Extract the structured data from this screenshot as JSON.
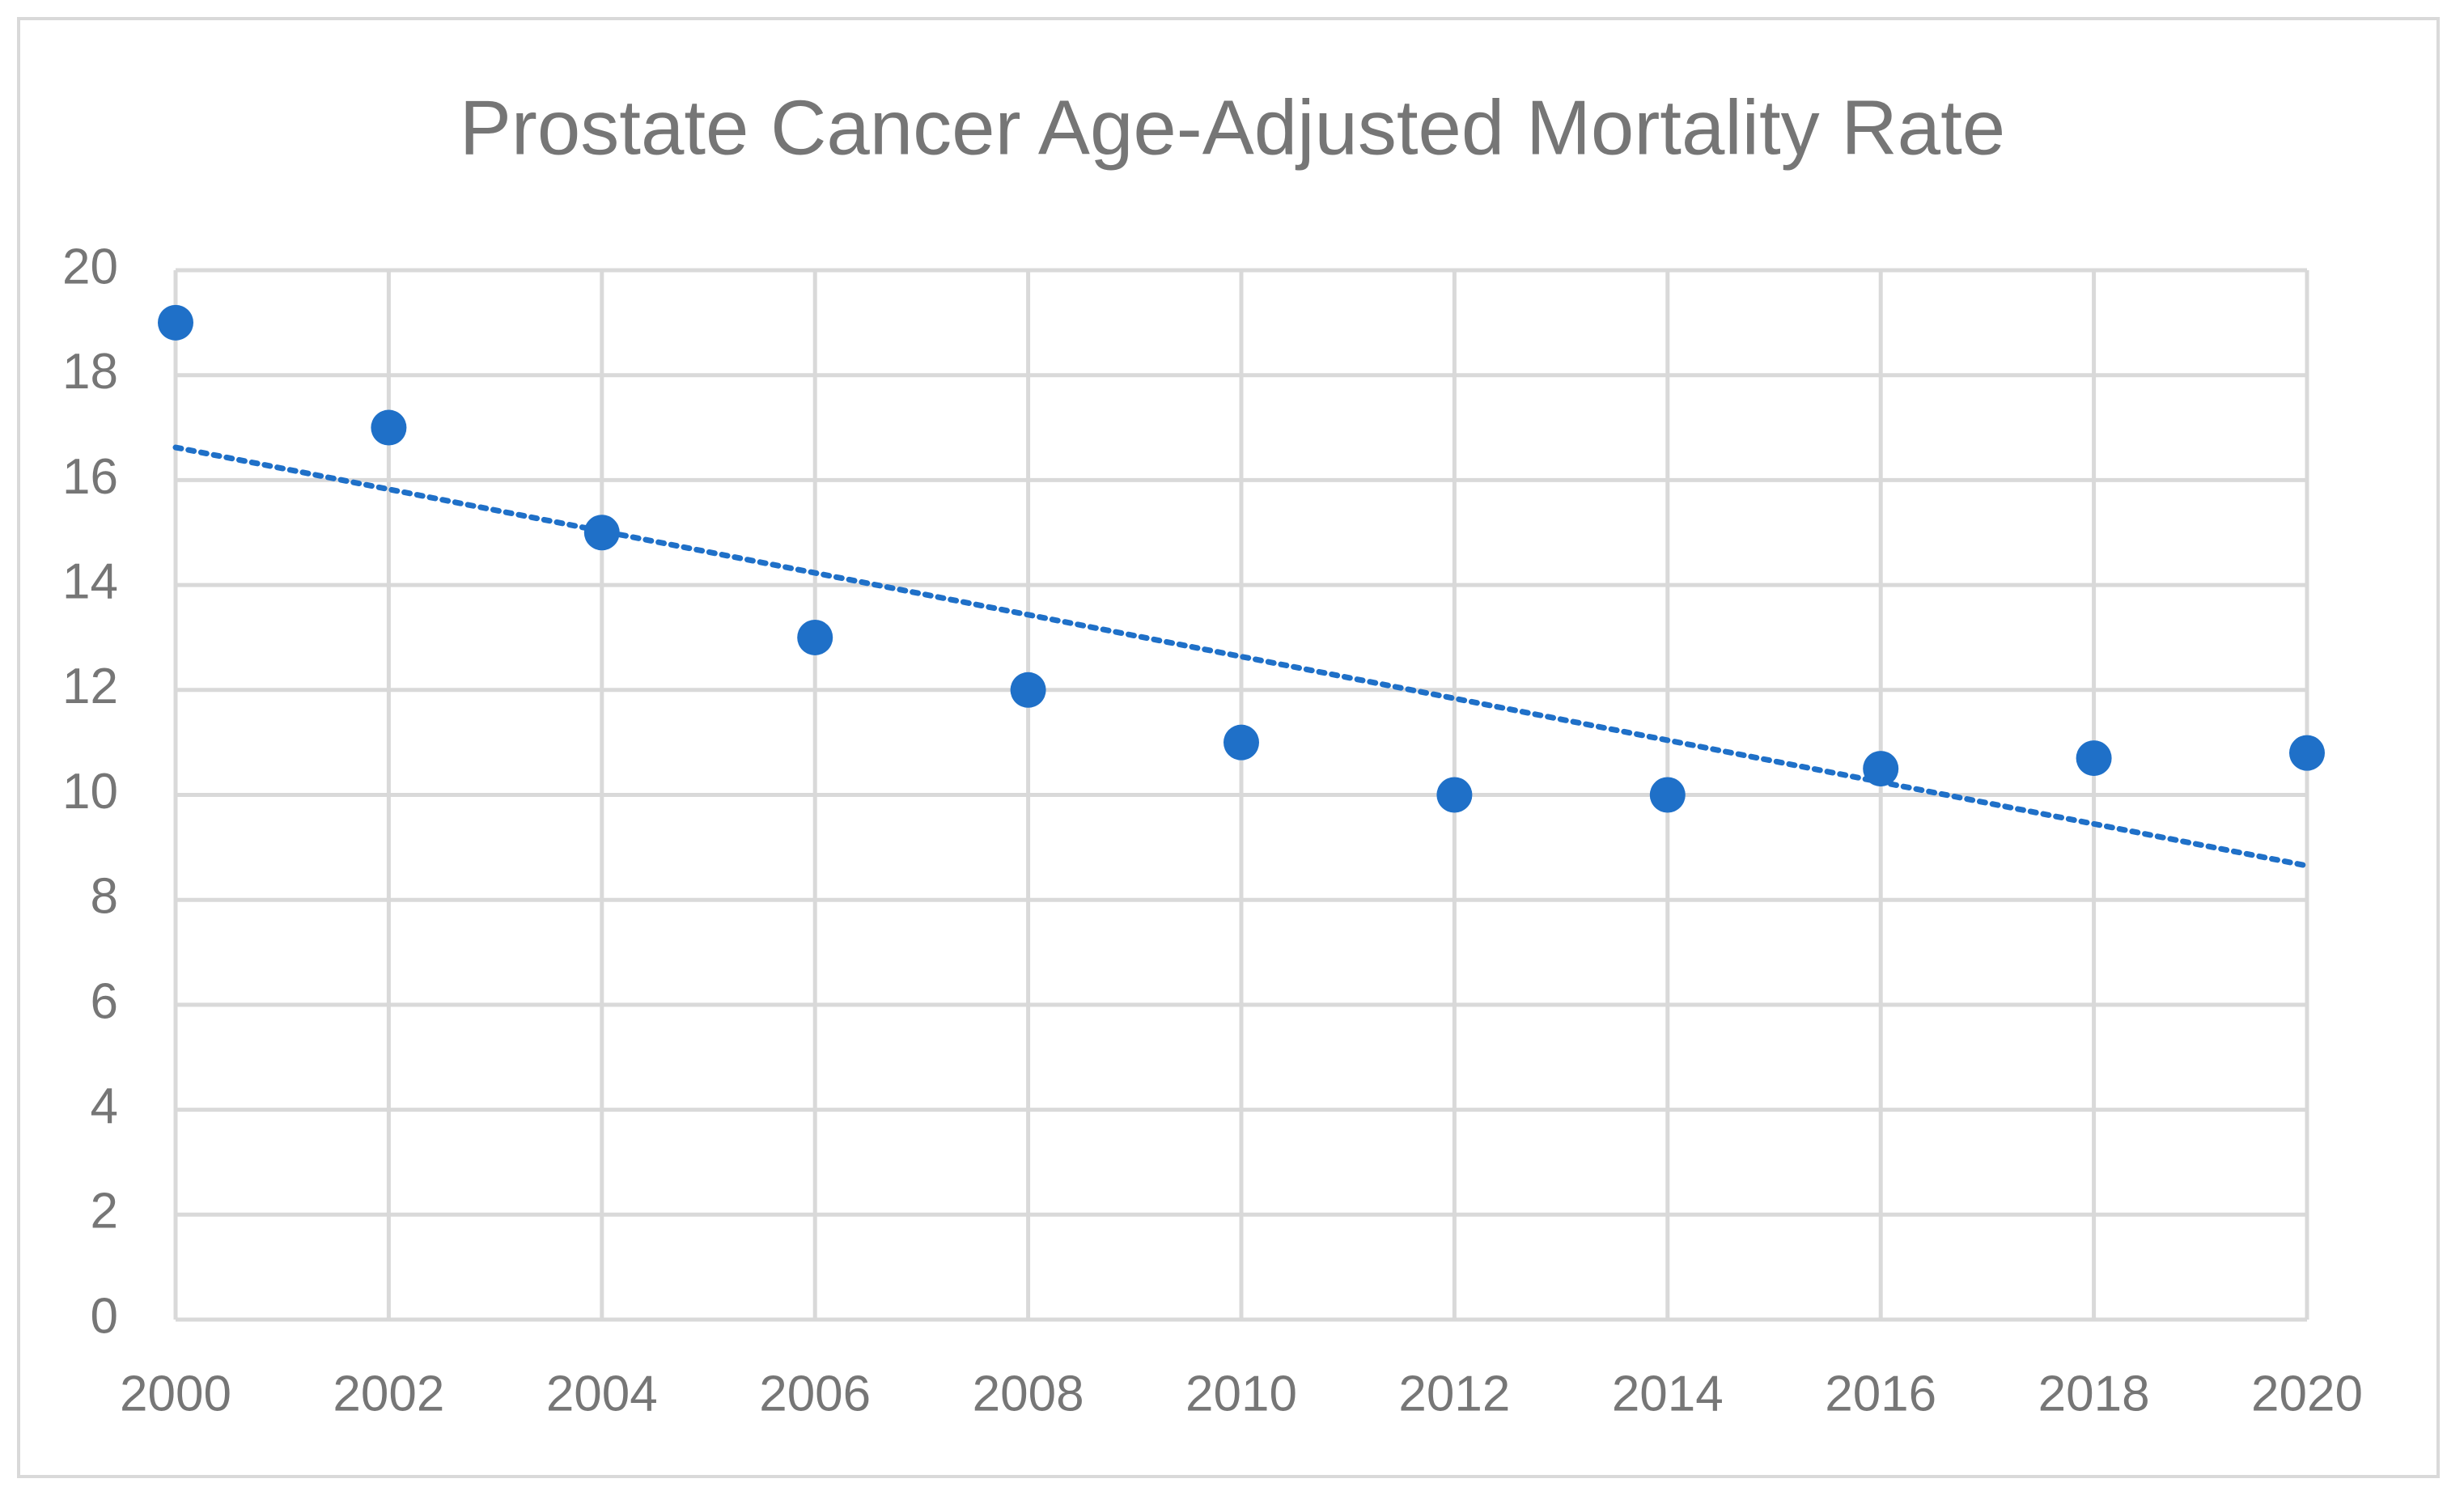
{
  "chart_data": {
    "type": "scatter",
    "title": "Prostate Cancer Age-Adjusted Mortality Rate",
    "x": [
      2000,
      2002,
      2004,
      2006,
      2008,
      2010,
      2012,
      2014,
      2016,
      2018,
      2020
    ],
    "values": [
      19,
      17,
      15,
      13,
      12,
      11,
      10,
      10,
      10.5,
      10.7,
      10.8
    ],
    "color": "#1f70c8",
    "xlim": [
      2000,
      2020
    ],
    "xticks": [
      2000,
      2002,
      2004,
      2006,
      2008,
      2010,
      2012,
      2014,
      2016,
      2018,
      2020
    ],
    "ylim": [
      0,
      20
    ],
    "yticks": [
      0,
      2,
      4,
      6,
      8,
      10,
      12,
      14,
      16,
      18,
      20
    ],
    "grid": true,
    "trendline": "linear"
  }
}
